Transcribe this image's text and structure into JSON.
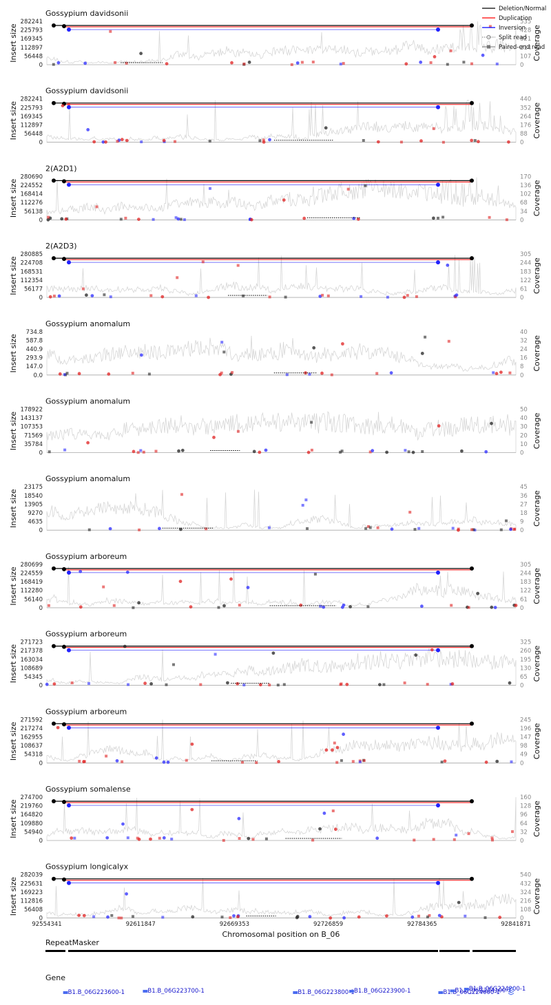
{
  "figure": {
    "xlabel": "Chromosomal position on B_06",
    "x_ticks": [
      "92554341",
      "92611847",
      "92669353",
      "92726859",
      "92784365",
      "92841871"
    ],
    "ylabel_left": "Insert size",
    "ylabel_right": "Coverage",
    "legend": [
      {
        "label": "Deletion/Normal",
        "color": "#000000",
        "style": "line"
      },
      {
        "label": "Duplication",
        "color": "#ff0000",
        "style": "line"
      },
      {
        "label": "Inversion",
        "color": "#0000ff",
        "style": "line"
      },
      {
        "label": "Split read",
        "color": "#777777",
        "style": "dotted-circle"
      },
      {
        "label": "Paired-end read",
        "color": "#777777",
        "style": "square"
      }
    ],
    "repeat_label": "RepeatMasker",
    "gene_label": "Gene",
    "colors": {
      "deletion": "#000000",
      "duplication": "#ff0000",
      "inversion": "#0000ff",
      "coverage": "#d9d9d9"
    }
  },
  "chart_data": [
    {
      "type": "line",
      "title": "Gossypium davidsonii",
      "y_ticks": [
        "282241",
        "225793",
        "169345",
        "112897",
        "56448",
        "0"
      ],
      "cov_ticks": [
        "535",
        "428",
        "321",
        "214",
        "107",
        "0"
      ],
      "ylim": [
        0,
        282241
      ],
      "cov_max": 535,
      "cov_level": 0.22,
      "seed": 11
    },
    {
      "type": "line",
      "title": "Gossypium davidsonii",
      "y_ticks": [
        "282241",
        "225793",
        "169345",
        "112897",
        "56448",
        "0"
      ],
      "cov_ticks": [
        "440",
        "352",
        "264",
        "176",
        "88",
        "0"
      ],
      "ylim": [
        0,
        282241
      ],
      "cov_max": 440,
      "cov_level": 0.18,
      "seed": 23
    },
    {
      "type": "line",
      "title": "2(A2D1)",
      "y_ticks": [
        "280690",
        "224552",
        "168414",
        "112276",
        "56138",
        "0"
      ],
      "cov_ticks": [
        "170",
        "136",
        "102",
        "68",
        "34",
        "0"
      ],
      "ylim": [
        0,
        280690
      ],
      "cov_max": 170,
      "cov_level": 0.25,
      "seed": 37
    },
    {
      "type": "line",
      "title": "2(A2D3)",
      "y_ticks": [
        "280885",
        "224708",
        "168531",
        "112354",
        "56177",
        "0"
      ],
      "cov_ticks": [
        "305",
        "244",
        "183",
        "122",
        "61",
        "0"
      ],
      "ylim": [
        0,
        280885
      ],
      "cov_max": 305,
      "cov_level": 0.24,
      "seed": 41
    },
    {
      "type": "line",
      "title": "Gossypium anomalum",
      "y_ticks": [
        "734.8",
        "587.8",
        "440.9",
        "293.9",
        "147.0",
        "0.0"
      ],
      "cov_ticks": [
        "40",
        "32",
        "24",
        "16",
        "8",
        "0"
      ],
      "ylim": [
        0,
        734.8
      ],
      "cov_max": 40,
      "cov_level": 0.55,
      "seed": 53
    },
    {
      "type": "line",
      "title": "Gossypium anomalum",
      "y_ticks": [
        "178922",
        "143137",
        "107353",
        "71569",
        "35784",
        "0"
      ],
      "cov_ticks": [
        "50",
        "40",
        "30",
        "20",
        "10",
        "0"
      ],
      "ylim": [
        0,
        178922
      ],
      "cov_max": 50,
      "cov_level": 0.45,
      "seed": 61
    },
    {
      "type": "line",
      "title": "Gossypium anomalum",
      "y_ticks": [
        "23175",
        "18540",
        "13905",
        "9270",
        "4635",
        "0"
      ],
      "cov_ticks": [
        "45",
        "36",
        "27",
        "18",
        "9",
        "0"
      ],
      "ylim": [
        0,
        23175
      ],
      "cov_max": 45,
      "cov_level": 0.55,
      "seed": 67
    },
    {
      "type": "line",
      "title": "Gossypium arboreum",
      "y_ticks": [
        "280699",
        "224559",
        "168419",
        "112280",
        "56140",
        "0"
      ],
      "cov_ticks": [
        "305",
        "244",
        "183",
        "122",
        "61",
        "0"
      ],
      "ylim": [
        0,
        280699
      ],
      "cov_max": 305,
      "cov_level": 0.2,
      "seed": 71
    },
    {
      "type": "line",
      "title": "Gossypium arboreum",
      "y_ticks": [
        "271723",
        "217378",
        "163034",
        "108689",
        "54345",
        "0"
      ],
      "cov_ticks": [
        "325",
        "260",
        "195",
        "130",
        "65",
        "0"
      ],
      "ylim": [
        0,
        271723
      ],
      "cov_max": 325,
      "cov_level": 0.16,
      "seed": 79
    },
    {
      "type": "line",
      "title": "Gossypium arboreum",
      "y_ticks": [
        "271592",
        "217274",
        "162955",
        "108637",
        "54318",
        "0"
      ],
      "cov_ticks": [
        "245",
        "196",
        "147",
        "98",
        "49",
        "0"
      ],
      "ylim": [
        0,
        271592
      ],
      "cov_max": 245,
      "cov_level": 0.17,
      "seed": 83
    },
    {
      "type": "line",
      "title": "Gossypium somalense",
      "y_ticks": [
        "274700",
        "219760",
        "164820",
        "109880",
        "54940",
        "0"
      ],
      "cov_ticks": [
        "160",
        "128",
        "96",
        "64",
        "32",
        "0"
      ],
      "ylim": [
        0,
        274700
      ],
      "cov_max": 160,
      "cov_level": 0.12,
      "seed": 89
    },
    {
      "type": "line",
      "title": "Gossypium longicalyx",
      "y_ticks": [
        "282039",
        "225631",
        "169223",
        "112816",
        "56408",
        "0"
      ],
      "cov_ticks": [
        "540",
        "432",
        "324",
        "216",
        "108",
        "0"
      ],
      "ylim": [
        0,
        282039
      ],
      "cov_max": 540,
      "cov_level": 0.2,
      "seed": 97
    }
  ],
  "genes": [
    {
      "label": "B1.B_06G223600-1",
      "pos": 0.045
    },
    {
      "label": "B1.B_06G223700-1",
      "pos": 0.215
    },
    {
      "label": "B1.B_06G223800-1",
      "pos": 0.535
    },
    {
      "label": "B1.B_06G223900-1",
      "pos": 0.655
    },
    {
      "label": "B1.B_06G224000-1",
      "pos": 0.845
    },
    {
      "label": "B1.B_06G224100-1",
      "pos": 0.87
    },
    {
      "label": "B1.B_06G224200-1",
      "pos": 0.9
    }
  ]
}
